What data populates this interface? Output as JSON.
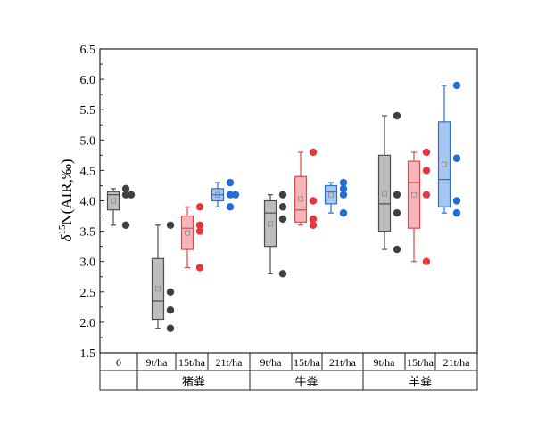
{
  "chart_data": {
    "type": "box",
    "ylabel": "δ15N(AIR,‰)",
    "ylabel_parts": {
      "main": "δ",
      "sup": "15",
      "rest": "N(AIR,‰)"
    },
    "ylim": [
      1.5,
      6.5
    ],
    "yticks": [
      "1.5",
      "2.0",
      "2.5",
      "3.0",
      "3.5",
      "4.0",
      "4.5",
      "5.0",
      "5.5",
      "6.0",
      "6.5"
    ],
    "groups": [
      {
        "label": "",
        "span": 1
      },
      {
        "label": "猪粪",
        "span": 3
      },
      {
        "label": "牛粪",
        "span": 3
      },
      {
        "label": "羊粪",
        "span": 3
      }
    ],
    "colors": {
      "gray": {
        "fill": "#bdbdbd",
        "stroke": "#4d4d4d",
        "dot": "#404040"
      },
      "red": {
        "fill": "#f7b6b8",
        "stroke": "#e0474c",
        "dot": "#e5383e"
      },
      "blue": {
        "fill": "#a8c7f0",
        "stroke": "#2a6fd0",
        "dot": "#1f6fd6"
      }
    },
    "boxes": [
      {
        "label": "0",
        "color": "gray",
        "min": 3.6,
        "q1": 3.85,
        "median": 4.1,
        "q3": 4.15,
        "max": 4.2,
        "mean": 4.0,
        "points": [
          4.2,
          4.1,
          4.1,
          3.6
        ]
      },
      {
        "label": "9t/ha",
        "color": "gray",
        "min": 1.9,
        "q1": 2.05,
        "median": 2.35,
        "q3": 3.05,
        "max": 3.6,
        "mean": 2.55,
        "points": [
          3.6,
          2.5,
          2.2,
          1.9
        ]
      },
      {
        "label": "15t/ha",
        "color": "red",
        "min": 2.9,
        "q1": 3.2,
        "median": 3.55,
        "q3": 3.75,
        "max": 3.9,
        "mean": 3.47,
        "points": [
          3.9,
          3.6,
          3.5,
          2.9
        ]
      },
      {
        "label": "21t/ha",
        "color": "blue",
        "min": 3.9,
        "q1": 4.0,
        "median": 4.1,
        "q3": 4.2,
        "max": 4.3,
        "mean": 4.1,
        "points": [
          4.3,
          4.1,
          4.1,
          3.9
        ]
      },
      {
        "label": "9t/ha",
        "color": "gray",
        "min": 2.8,
        "q1": 3.25,
        "median": 3.8,
        "q3": 4.0,
        "max": 4.1,
        "mean": 3.62,
        "points": [
          4.1,
          3.9,
          3.7,
          2.8
        ]
      },
      {
        "label": "15t/ha",
        "color": "red",
        "min": 3.6,
        "q1": 3.65,
        "median": 3.85,
        "q3": 4.4,
        "max": 4.8,
        "mean": 4.03,
        "points": [
          4.8,
          4.0,
          3.7,
          3.6
        ]
      },
      {
        "label": "21t/ha",
        "color": "blue",
        "min": 3.8,
        "q1": 3.95,
        "median": 4.15,
        "q3": 4.25,
        "max": 4.3,
        "mean": 4.1,
        "points": [
          4.3,
          4.2,
          4.1,
          3.8
        ]
      },
      {
        "label": "9t/ha",
        "color": "gray",
        "min": 3.2,
        "q1": 3.5,
        "median": 3.95,
        "q3": 4.75,
        "max": 5.4,
        "mean": 4.12,
        "points": [
          5.4,
          4.1,
          3.8,
          3.2
        ]
      },
      {
        "label": "15t/ha",
        "color": "red",
        "min": 3.0,
        "q1": 3.55,
        "median": 4.3,
        "q3": 4.65,
        "max": 4.8,
        "mean": 4.1,
        "points": [
          4.8,
          4.5,
          4.1,
          3.0
        ]
      },
      {
        "label": "21t/ha",
        "color": "blue",
        "min": 3.8,
        "q1": 3.9,
        "median": 4.35,
        "q3": 5.3,
        "max": 5.9,
        "mean": 4.6,
        "points": [
          5.9,
          4.7,
          4.0,
          3.8
        ]
      }
    ]
  }
}
